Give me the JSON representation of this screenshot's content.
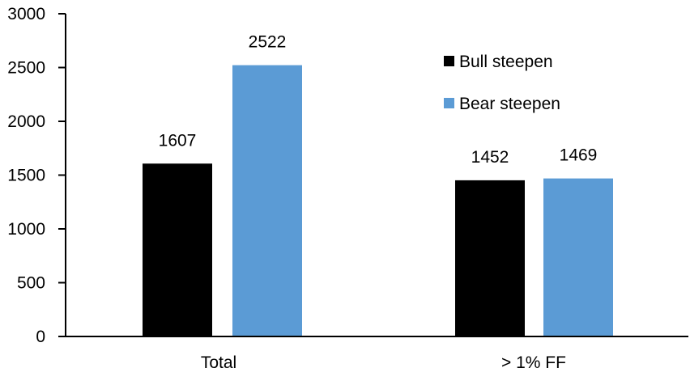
{
  "chart_data": {
    "type": "bar",
    "categories": [
      "Total",
      "> 1% FF"
    ],
    "series": [
      {
        "name": "Bull steepen",
        "values": [
          1607,
          1452
        ],
        "color": "#000000"
      },
      {
        "name": "Bear steepen",
        "values": [
          2522,
          1469
        ],
        "color": "#5B9BD5"
      }
    ],
    "ylim": [
      0,
      3000
    ],
    "yticks": [
      0,
      500,
      1000,
      1500,
      2000,
      2500,
      3000
    ],
    "grid": false,
    "legend": "top-right",
    "data_labels": true
  }
}
